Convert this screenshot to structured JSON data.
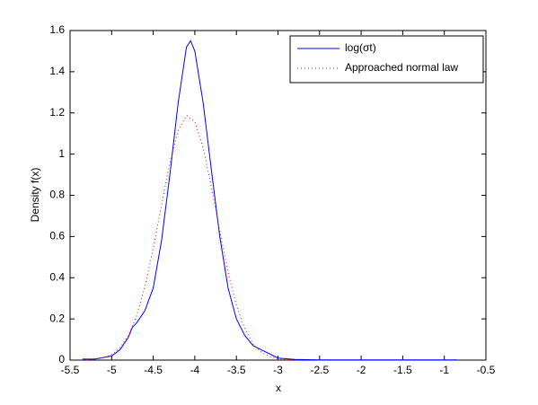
{
  "chart_data": {
    "type": "line",
    "x_label": "x",
    "y_label": "Density f(x)",
    "xlim": [
      -5.5,
      -0.5
    ],
    "ylim": [
      0,
      1.6
    ],
    "xticks": [
      -5.5,
      -5,
      -4.5,
      -4,
      -3.5,
      -3,
      -2.5,
      -2,
      -1.5,
      -1,
      -0.5
    ],
    "yticks": [
      0,
      0.2,
      0.4,
      0.6,
      0.8,
      1,
      1.2,
      1.4,
      1.6
    ],
    "legend": "upper right",
    "series": [
      {
        "name": "log(σt)",
        "color": "#0000ff",
        "style": "solid",
        "x": [
          -5.35,
          -5.2,
          -5.0,
          -4.9,
          -4.8,
          -4.75,
          -4.7,
          -4.6,
          -4.5,
          -4.4,
          -4.3,
          -4.2,
          -4.1,
          -4.05,
          -4.0,
          -3.9,
          -3.8,
          -3.7,
          -3.6,
          -3.5,
          -3.4,
          -3.3,
          -3.2,
          -3.1,
          -3.0,
          -2.8,
          -2.5,
          -2.0,
          -1.5,
          -0.85
        ],
        "values": [
          0.005,
          0.005,
          0.02,
          0.05,
          0.11,
          0.16,
          0.18,
          0.24,
          0.35,
          0.58,
          0.9,
          1.25,
          1.52,
          1.55,
          1.5,
          1.25,
          0.92,
          0.6,
          0.35,
          0.2,
          0.12,
          0.07,
          0.05,
          0.03,
          0.01,
          0.003,
          0.001,
          0.001,
          0.001,
          0.001
        ]
      },
      {
        "name": "Approached normal law",
        "color": "#ff0000",
        "style": "dotted",
        "x": [
          -5.3,
          -5.1,
          -5.0,
          -4.9,
          -4.8,
          -4.7,
          -4.6,
          -4.5,
          -4.4,
          -4.3,
          -4.2,
          -4.1,
          -4.0,
          -3.9,
          -3.8,
          -3.7,
          -3.6,
          -3.5,
          -3.4,
          -3.3,
          -3.2,
          -3.1,
          -3.0,
          -2.8
        ],
        "values": [
          0.0016,
          0.0116,
          0.027,
          0.06,
          0.118,
          0.215,
          0.357,
          0.542,
          0.754,
          0.959,
          1.116,
          1.188,
          1.157,
          1.031,
          0.839,
          0.626,
          0.426,
          0.266,
          0.152,
          0.079,
          0.038,
          0.0165,
          0.0066,
          0.0008
        ]
      }
    ]
  }
}
